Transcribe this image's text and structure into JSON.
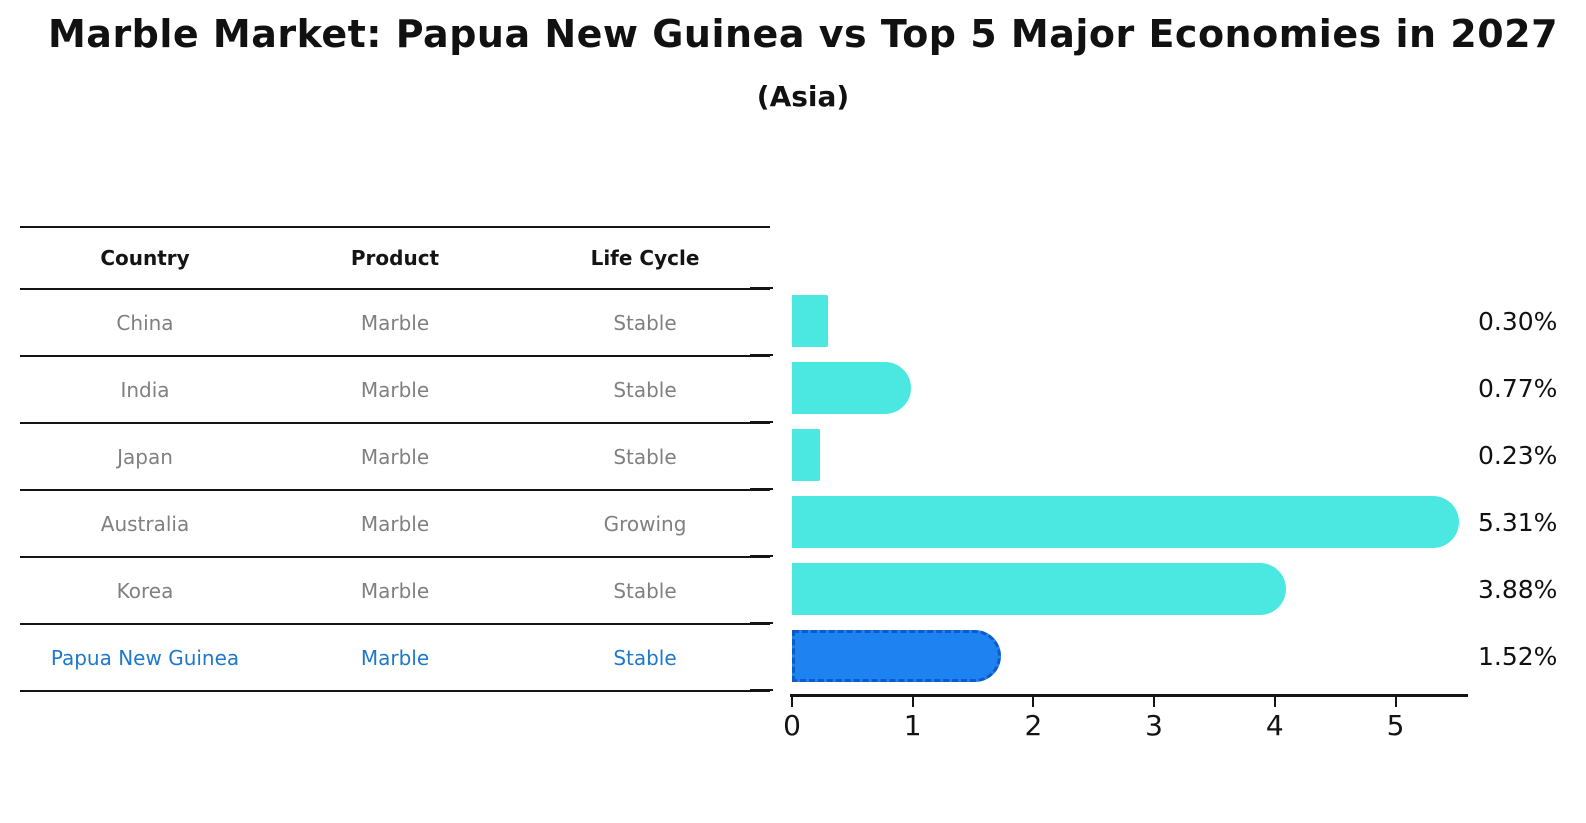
{
  "title": "Marble Market: Papua New Guinea vs Top 5 Major Economies in 2027",
  "subtitle": "(Asia)",
  "table": {
    "headers": [
      "Country",
      "Product",
      "Life Cycle"
    ],
    "rows": [
      {
        "country": "China",
        "product": "Marble",
        "life_cycle": "Stable",
        "highlight": false
      },
      {
        "country": "India",
        "product": "Marble",
        "life_cycle": "Stable",
        "highlight": false
      },
      {
        "country": "Japan",
        "product": "Marble",
        "life_cycle": "Stable",
        "highlight": false
      },
      {
        "country": "Australia",
        "product": "Marble",
        "life_cycle": "Growing",
        "highlight": false
      },
      {
        "country": "Korea",
        "product": "Marble",
        "life_cycle": "Stable",
        "highlight": false
      },
      {
        "country": "Papua New Guinea",
        "product": "Marble",
        "life_cycle": "Stable",
        "highlight": true
      }
    ]
  },
  "chart_data": {
    "type": "bar",
    "orientation": "horizontal",
    "title": "Marble Market: Papua New Guinea vs Top 5 Major Economies in 2027 (Asia)",
    "categories": [
      "China",
      "India",
      "Japan",
      "Australia",
      "Korea",
      "Papua New Guinea"
    ],
    "values": [
      0.3,
      0.77,
      0.23,
      5.31,
      3.88,
      1.52
    ],
    "value_labels": [
      "0.30%",
      "0.77%",
      "0.23%",
      "5.31%",
      "3.88%",
      "1.52%"
    ],
    "highlight_index": 5,
    "xlabel": "",
    "ylabel": "",
    "xlim": [
      0,
      5.6
    ],
    "xtick_labels": [
      "0",
      "1",
      "2",
      "3",
      "4",
      "5"
    ],
    "grid": false,
    "legend": "none"
  },
  "colors": {
    "bar": "#4AE8E0",
    "highlight_bar": "#1E82F0",
    "highlight_border": "#0E5AC8",
    "highlight_text": "#1E78CC",
    "row_text": "#808080",
    "header_text": "#141414",
    "value_label_text": "#111111",
    "axis": "#141414",
    "background": "#ffffff"
  }
}
